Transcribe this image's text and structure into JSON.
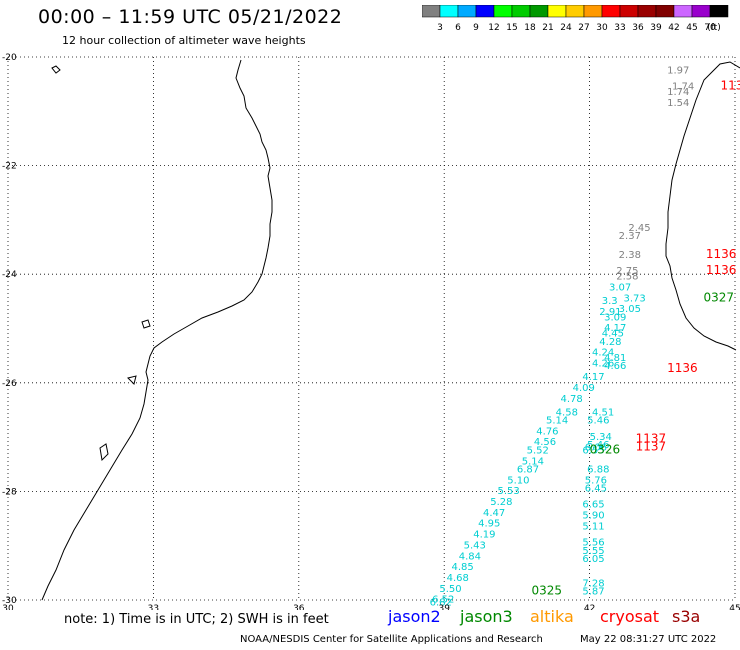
{
  "title": "00:00 – 11:59 UTC 05/21/2022",
  "subtitle": "12 hour collection of altimeter wave heights",
  "colorbar": {
    "unit": "(ft)",
    "colors": [
      "#808080",
      "#00ffff",
      "#00aaff",
      "#0000ff",
      "#00ff00",
      "#00cc00",
      "#009900",
      "#ffff00",
      "#ffcc00",
      "#ff9900",
      "#ff0000",
      "#cc0000",
      "#990000",
      "#800000",
      "#cc66ff",
      "#9900cc",
      "#000000"
    ],
    "labels": [
      "3",
      "6",
      "9",
      "12",
      "15",
      "18",
      "21",
      "24",
      "27",
      "30",
      "33",
      "36",
      "39",
      "42",
      "45",
      "70"
    ]
  },
  "map": {
    "lat_range": [
      -30,
      -20
    ],
    "lon_range": [
      30,
      45
    ],
    "lat_ticks": [
      "-20",
      "-22",
      "-24",
      "-26",
      "-28",
      "-30"
    ],
    "lon_ticks": [
      "30",
      "33",
      "36",
      "39",
      "42",
      "45"
    ],
    "grid": "dotted"
  },
  "passes": [
    {
      "text": "1136",
      "lon": 44.4,
      "lat": -24.0,
      "color": "#ff0000"
    },
    {
      "text": "1136",
      "lon": 44.4,
      "lat": -23.7,
      "color": "#ff0000"
    },
    {
      "text": "1136",
      "lon": 43.6,
      "lat": -25.8,
      "color": "#ff0000"
    },
    {
      "text": "113",
      "lon": 44.7,
      "lat": -20.6,
      "color": "#ff0000"
    },
    {
      "text": "1137",
      "lon": 42.95,
      "lat": -27.1,
      "color": "#ff0000"
    },
    {
      "text": "1137",
      "lon": 42.95,
      "lat": -27.25,
      "color": "#ff0000"
    },
    {
      "text": "0327",
      "lon": 44.35,
      "lat": -24.5,
      "color": "#008800"
    },
    {
      "text": "0326",
      "lon": 42.0,
      "lat": -27.3,
      "color": "#008800"
    },
    {
      "text": "0325",
      "lon": 40.8,
      "lat": -29.9,
      "color": "#008800"
    }
  ],
  "wave_heights": [
    {
      "text": "1.97",
      "lon": 43.6,
      "lat": -20.3,
      "color": "#808080"
    },
    {
      "text": "1.74",
      "lon": 43.7,
      "lat": -20.6,
      "color": "#808080"
    },
    {
      "text": "1.74",
      "lon": 43.6,
      "lat": -20.7,
      "color": "#808080"
    },
    {
      "text": "1.54",
      "lon": 43.6,
      "lat": -20.9,
      "color": "#808080"
    },
    {
      "text": "2.45",
      "lon": 42.8,
      "lat": -23.2,
      "color": "#808080"
    },
    {
      "text": "2.37",
      "lon": 42.6,
      "lat": -23.35,
      "color": "#808080"
    },
    {
      "text": "2.38",
      "lon": 42.6,
      "lat": -23.7,
      "color": "#808080"
    },
    {
      "text": "2.75",
      "lon": 42.55,
      "lat": -24.0,
      "color": "#808080"
    },
    {
      "text": "2.58",
      "lon": 42.55,
      "lat": -24.1,
      "color": "#808080"
    },
    {
      "text": "3.07",
      "lon": 42.4,
      "lat": -24.3,
      "color": "#00ced1"
    },
    {
      "text": "3.73",
      "lon": 42.7,
      "lat": -24.5,
      "color": "#00ced1"
    },
    {
      "text": "3.3",
      "lon": 42.25,
      "lat": -24.55,
      "color": "#00ced1"
    },
    {
      "text": "3.05",
      "lon": 42.6,
      "lat": -24.7,
      "color": "#00ced1"
    },
    {
      "text": "2.91",
      "lon": 42.2,
      "lat": -24.75,
      "color": "#00ced1"
    },
    {
      "text": "3.09",
      "lon": 42.3,
      "lat": -24.85,
      "color": "#00ced1"
    },
    {
      "text": "4.17",
      "lon": 42.3,
      "lat": -25.05,
      "color": "#00ced1"
    },
    {
      "text": "4.45",
      "lon": 42.25,
      "lat": -25.15,
      "color": "#00ced1"
    },
    {
      "text": "4.28",
      "lon": 42.2,
      "lat": -25.3,
      "color": "#00ced1"
    },
    {
      "text": "4.24",
      "lon": 42.05,
      "lat": -25.5,
      "color": "#00ced1"
    },
    {
      "text": "4.81",
      "lon": 42.3,
      "lat": -25.6,
      "color": "#00ced1"
    },
    {
      "text": "4.26",
      "lon": 42.05,
      "lat": -25.7,
      "color": "#00ced1"
    },
    {
      "text": "4.66",
      "lon": 42.3,
      "lat": -25.75,
      "color": "#00ced1"
    },
    {
      "text": "4.17",
      "lon": 41.85,
      "lat": -25.95,
      "color": "#00ced1"
    },
    {
      "text": "4.09",
      "lon": 41.65,
      "lat": -26.15,
      "color": "#00ced1"
    },
    {
      "text": "4.78",
      "lon": 41.4,
      "lat": -26.35,
      "color": "#00ced1"
    },
    {
      "text": "4.58",
      "lon": 41.3,
      "lat": -26.6,
      "color": "#00ced1"
    },
    {
      "text": "4.51",
      "lon": 42.05,
      "lat": -26.6,
      "color": "#00ced1"
    },
    {
      "text": "5.14",
      "lon": 41.1,
      "lat": -26.75,
      "color": "#00ced1"
    },
    {
      "text": "5.46",
      "lon": 41.95,
      "lat": -26.75,
      "color": "#00ced1"
    },
    {
      "text": "4.76",
      "lon": 40.9,
      "lat": -26.95,
      "color": "#00ced1"
    },
    {
      "text": "4.56",
      "lon": 40.85,
      "lat": -27.15,
      "color": "#00ced1"
    },
    {
      "text": "5.34",
      "lon": 42.0,
      "lat": -27.05,
      "color": "#00ced1"
    },
    {
      "text": "5.46",
      "lon": 41.95,
      "lat": -27.2,
      "color": "#00ced1"
    },
    {
      "text": "5.52",
      "lon": 40.7,
      "lat": -27.3,
      "color": "#00ced1"
    },
    {
      "text": "6.55",
      "lon": 41.85,
      "lat": -27.3,
      "color": "#00ced1"
    },
    {
      "text": "6.06",
      "lon": 41.9,
      "lat": -27.25,
      "color": "#00ced1"
    },
    {
      "text": "5.14",
      "lon": 40.6,
      "lat": -27.5,
      "color": "#00ced1"
    },
    {
      "text": "6.87",
      "lon": 40.5,
      "lat": -27.65,
      "color": "#00ced1"
    },
    {
      "text": "6.88",
      "lon": 41.95,
      "lat": -27.65,
      "color": "#00ced1"
    },
    {
      "text": "5.10",
      "lon": 40.3,
      "lat": -27.85,
      "color": "#00ced1"
    },
    {
      "text": "5.76",
      "lon": 41.9,
      "lat": -27.85,
      "color": "#00ced1"
    },
    {
      "text": "5.53",
      "lon": 40.1,
      "lat": -28.05,
      "color": "#00ced1"
    },
    {
      "text": "6.45",
      "lon": 41.9,
      "lat": -28.0,
      "color": "#00ced1"
    },
    {
      "text": "5.28",
      "lon": 39.95,
      "lat": -28.25,
      "color": "#00ced1"
    },
    {
      "text": "6.65",
      "lon": 41.85,
      "lat": -28.3,
      "color": "#00ced1"
    },
    {
      "text": "4.47",
      "lon": 39.8,
      "lat": -28.45,
      "color": "#00ced1"
    },
    {
      "text": "5.90",
      "lon": 41.85,
      "lat": -28.5,
      "color": "#00ced1"
    },
    {
      "text": "4.95",
      "lon": 39.7,
      "lat": -28.65,
      "color": "#00ced1"
    },
    {
      "text": "5.11",
      "lon": 41.85,
      "lat": -28.7,
      "color": "#00ced1"
    },
    {
      "text": "4.19",
      "lon": 39.6,
      "lat": -28.85,
      "color": "#00ced1"
    },
    {
      "text": "5.43",
      "lon": 39.4,
      "lat": -29.05,
      "color": "#00ced1"
    },
    {
      "text": "5.56",
      "lon": 41.85,
      "lat": -29.0,
      "color": "#00ced1"
    },
    {
      "text": "4.84",
      "lon": 39.3,
      "lat": -29.25,
      "color": "#00ced1"
    },
    {
      "text": "5.55",
      "lon": 41.85,
      "lat": -29.15,
      "color": "#00ced1"
    },
    {
      "text": "6.05",
      "lon": 41.85,
      "lat": -29.3,
      "color": "#00ced1"
    },
    {
      "text": "4.85",
      "lon": 39.15,
      "lat": -29.45,
      "color": "#00ced1"
    },
    {
      "text": "4.68",
      "lon": 39.05,
      "lat": -29.65,
      "color": "#00ced1"
    },
    {
      "text": "7.28",
      "lon": 41.85,
      "lat": -29.75,
      "color": "#00ced1"
    },
    {
      "text": "5.50",
      "lon": 38.9,
      "lat": -29.85,
      "color": "#00ced1"
    },
    {
      "text": "5.87",
      "lon": 41.85,
      "lat": -29.9,
      "color": "#00ced1"
    },
    {
      "text": "6.52",
      "lon": 38.75,
      "lat": -30.05,
      "color": "#00ced1"
    },
    {
      "text": "6.82",
      "lon": 38.7,
      "lat": -30.1,
      "color": "#00ced1"
    }
  ],
  "note": "note: 1) Time is in UTC; 2) SWH is in feet",
  "satellites": [
    {
      "name": "jason2",
      "color": "#0000ff"
    },
    {
      "name": "jason3",
      "color": "#008800"
    },
    {
      "name": "altika",
      "color": "#ff9900"
    },
    {
      "name": "cryosat",
      "color": "#ff0000"
    },
    {
      "name": "s3a",
      "color": "#990000"
    }
  ],
  "credit": "NOAA/NESDIS Center for Satellite Applications and Research",
  "timestamp": "May 22 08:31:27 UTC 2022"
}
